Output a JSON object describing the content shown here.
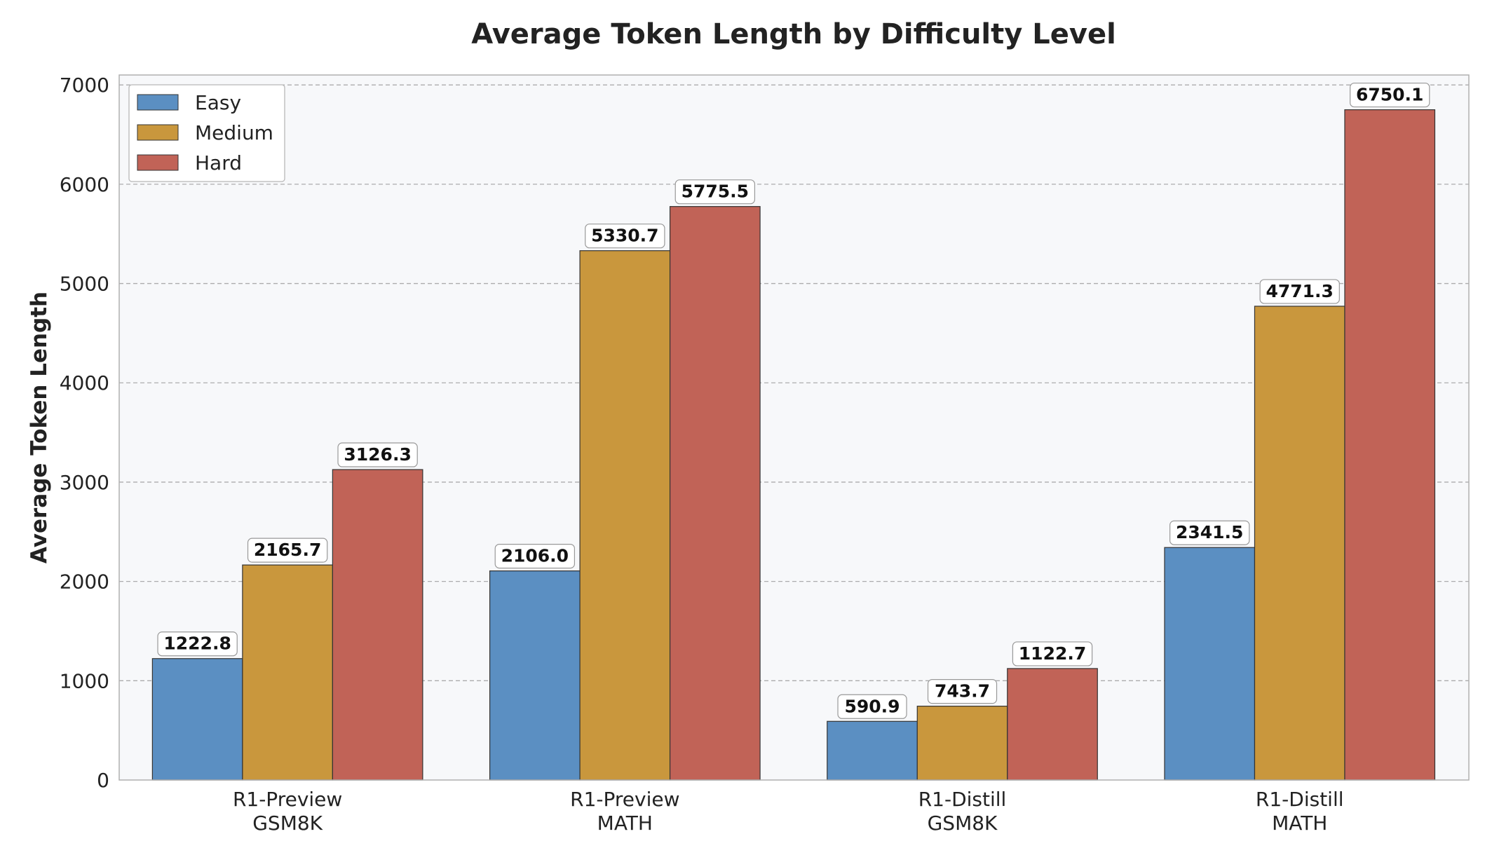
{
  "chart_data": {
    "type": "bar",
    "title": "Average Token Length by Difficulty Level",
    "xlabel": "",
    "ylabel": "Average Token Length",
    "categories": [
      [
        "R1-Preview",
        "GSM8K"
      ],
      [
        "R1-Preview",
        "MATH"
      ],
      [
        "R1-Distill",
        "GSM8K"
      ],
      [
        "R1-Distill",
        "MATH"
      ]
    ],
    "series": [
      {
        "name": "Easy",
        "color": "#5b8fc2",
        "values": [
          1222.8,
          2106.0,
          590.9,
          2341.5
        ],
        "labels": [
          "1222.8",
          "2106.0",
          "590.9",
          "2341.5"
        ]
      },
      {
        "name": "Medium",
        "color": "#c9973d",
        "values": [
          2165.7,
          5330.7,
          743.7,
          4771.3
        ],
        "labels": [
          "2165.7",
          "5330.7",
          "743.7",
          "4771.3"
        ]
      },
      {
        "name": "Hard",
        "color": "#c16357",
        "values": [
          3126.3,
          5775.5,
          1122.7,
          6750.1
        ],
        "labels": [
          "3126.3",
          "5775.5",
          "1122.7",
          "6750.1"
        ]
      }
    ],
    "ylim": [
      0,
      7100
    ],
    "yticks": [
      0,
      1000,
      2000,
      3000,
      4000,
      5000,
      6000,
      7000
    ],
    "ytick_labels": [
      "0",
      "1000",
      "2000",
      "3000",
      "4000",
      "5000",
      "6000",
      "7000"
    ],
    "grid": "y dashed",
    "legend": "top-left",
    "colors": {
      "plot_background": "#f7f8fa",
      "frame": "#b0b0b0",
      "grid": "#9a9a9a",
      "text": "#222222"
    }
  }
}
